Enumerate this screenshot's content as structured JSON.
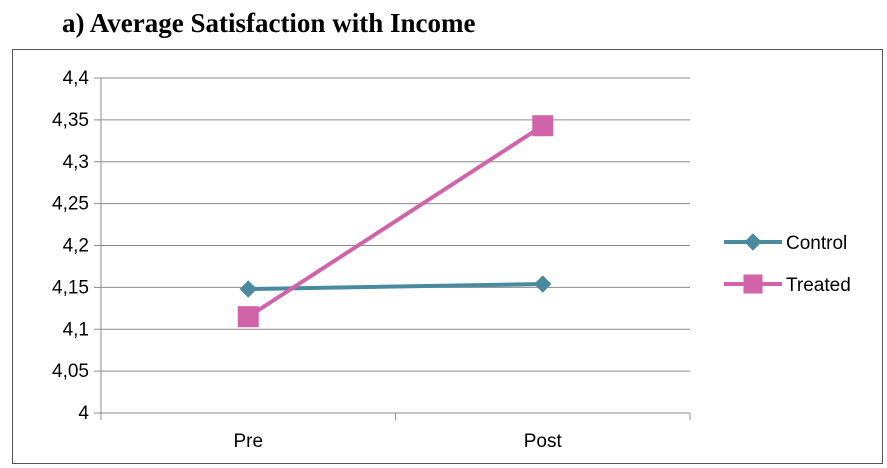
{
  "figure": {
    "caption": "a)  Average Satisfaction with Income"
  },
  "chart_data": {
    "type": "line",
    "title": "a)  Average Satisfaction with Income",
    "categories": [
      "Pre",
      "Post"
    ],
    "ylim": [
      4,
      4.4
    ],
    "yticks": [
      "4",
      "4,05",
      "4,1",
      "4,15",
      "4,2",
      "4,25",
      "4,3",
      "4,35",
      "4,4"
    ],
    "ytick_values": [
      4,
      4.05,
      4.1,
      4.15,
      4.2,
      4.25,
      4.3,
      4.35,
      4.4
    ],
    "grid": true,
    "legend_position": "right",
    "series": [
      {
        "name": "Control",
        "values": [
          4.148,
          4.154
        ],
        "color": "#4a8a9e",
        "marker": "diamond"
      },
      {
        "name": "Treated",
        "values": [
          4.115,
          4.343
        ],
        "color": "#d163a9",
        "marker": "square"
      }
    ]
  }
}
